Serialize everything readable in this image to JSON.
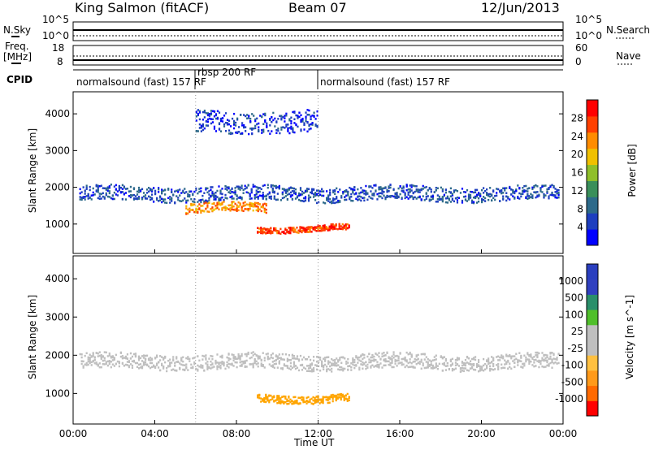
{
  "header": {
    "station": "King Salmon (fitACF)",
    "beam": "Beam 07",
    "date": "12/Jun/2013"
  },
  "panels": {
    "nsky_label": "N.Sky",
    "nsky_top": "10^5",
    "nsky_bottom": "10^0",
    "nsearch_label": "N.Search",
    "nsearch_top": "10^5",
    "nsearch_bottom": "10^0",
    "freq_label_1": "Freq.",
    "freq_label_2": "[MHz]",
    "freq_top": "18",
    "freq_bottom": "8",
    "nave_label": "Nave",
    "nave_top": "60",
    "nave_bottom": "0",
    "cpid_label": "CPID",
    "cpid_segments": [
      "normalsound (fast) 157 RF",
      "rbsp 200 RF",
      "normalsound (fast) 157 RF"
    ]
  },
  "colors": {
    "power": [
      "#0000ff",
      "#1e3fbf",
      "#2d6a8a",
      "#3a8f5a",
      "#8fbf2a",
      "#f0c000",
      "#ff8c00",
      "#ff4000",
      "#ff0000"
    ],
    "velocity": [
      "#ff0000",
      "#ff6a00",
      "#ff9a1a",
      "#ffc040",
      "#bfbfbf",
      "#bfbfbf",
      "#4fbf2a",
      "#2a8f6a",
      "#3040c0",
      "#2a3fbf"
    ]
  },
  "chart_data": [
    {
      "type": "heatmap",
      "title": "",
      "ylabel": "Slant Range [km]",
      "xlabel": "",
      "x_ticks": [
        "00:00",
        "04:00",
        "08:00",
        "12:00",
        "16:00",
        "20:00",
        "00:00"
      ],
      "y_ticks": [
        "1000",
        "2000",
        "3000",
        "4000"
      ],
      "ylim": [
        200,
        4600
      ],
      "xlim_hours": [
        0,
        24
      ],
      "colorbar": {
        "label": "Power [dB]",
        "ticks": [
          "4",
          "8",
          "12",
          "16",
          "20",
          "24",
          "28"
        ],
        "range": [
          0,
          30
        ]
      },
      "features": [
        {
          "t_start": 0.3,
          "t_end": 23.8,
          "range_center": 1850,
          "range_half": 200,
          "level": 6
        },
        {
          "t_start": 5.5,
          "t_end": 9.5,
          "range_center": 1450,
          "range_half": 130,
          "level": 22
        },
        {
          "t_start": 9.0,
          "t_end": 13.5,
          "range_center": 900,
          "range_half": 80,
          "level": 26
        },
        {
          "t_start": 6.0,
          "t_end": 12.0,
          "range_center": 3800,
          "range_half": 300,
          "level": 4
        }
      ]
    },
    {
      "type": "heatmap",
      "title": "",
      "ylabel": "Slant Range [km]",
      "xlabel": "Time UT",
      "x_ticks": [
        "00:00",
        "04:00",
        "08:00",
        "12:00",
        "16:00",
        "20:00",
        "00:00"
      ],
      "y_ticks": [
        "1000",
        "2000",
        "3000",
        "4000"
      ],
      "ylim": [
        200,
        4600
      ],
      "xlim_hours": [
        0,
        24
      ],
      "colorbar": {
        "label": "Velocity [m s^-1]",
        "ticks": [
          "-1000",
          "-500",
          "-100",
          "-25",
          "25",
          "100",
          "500",
          "1000"
        ],
        "range": [
          -1500,
          1500
        ]
      },
      "features": [
        {
          "t_start": 0.3,
          "t_end": 23.8,
          "range_center": 1850,
          "range_half": 200,
          "level": 0
        },
        {
          "t_start": 9.0,
          "t_end": 13.5,
          "range_center": 900,
          "range_half": 100,
          "level": -150
        }
      ]
    }
  ]
}
